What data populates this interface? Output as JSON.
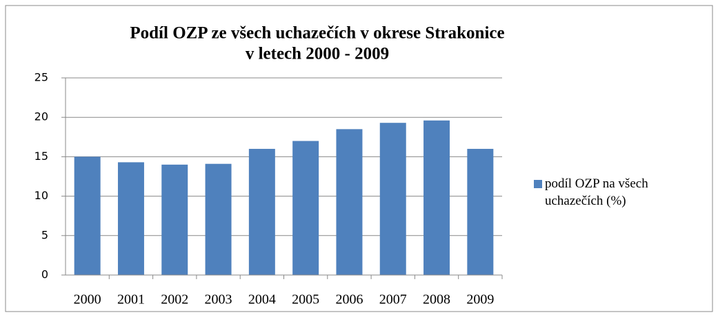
{
  "chart_data": {
    "type": "bar",
    "title": [
      "Podíl OZP ze všech uchazečích v okrese Strakonice",
      "v letech 2000 - 2009"
    ],
    "categories": [
      "2000",
      "2001",
      "2002",
      "2003",
      "2004",
      "2005",
      "2006",
      "2007",
      "2008",
      "2009"
    ],
    "series": [
      {
        "name": "podíl OZP na všech uchazečích (%)",
        "color": "#4f81bd",
        "values": [
          15.0,
          14.3,
          14.0,
          14.1,
          16.0,
          17.0,
          18.5,
          19.3,
          19.6,
          16.0
        ]
      }
    ],
    "ylim": [
      0,
      25
    ],
    "yticks": [
      0,
      5,
      10,
      15,
      20,
      25
    ],
    "grid": true,
    "legend": "right"
  }
}
